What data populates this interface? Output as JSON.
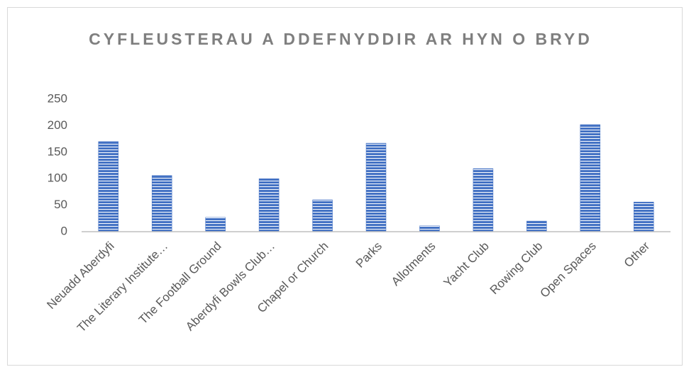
{
  "chart_data": {
    "type": "bar",
    "title": "CYFLEUSTERAU A DDEFNYDDIR AR HYN O BRYD",
    "categories": [
      "Neuadd Aberdyfi",
      "The Literary Institute…",
      "The Football Ground",
      "Aberdyfi Bowls Club…",
      "Chapel or Church",
      "Parks",
      "Allotments",
      "Yacht Club",
      "Rowing Club",
      "Open Spaces",
      "Other"
    ],
    "values": [
      170,
      106,
      27,
      100,
      60,
      167,
      11,
      119,
      20,
      202,
      56
    ],
    "color": "#4472c4",
    "ylim": [
      0,
      250
    ],
    "yticks": [
      0,
      50,
      100,
      150,
      200,
      250
    ],
    "grid": false
  }
}
